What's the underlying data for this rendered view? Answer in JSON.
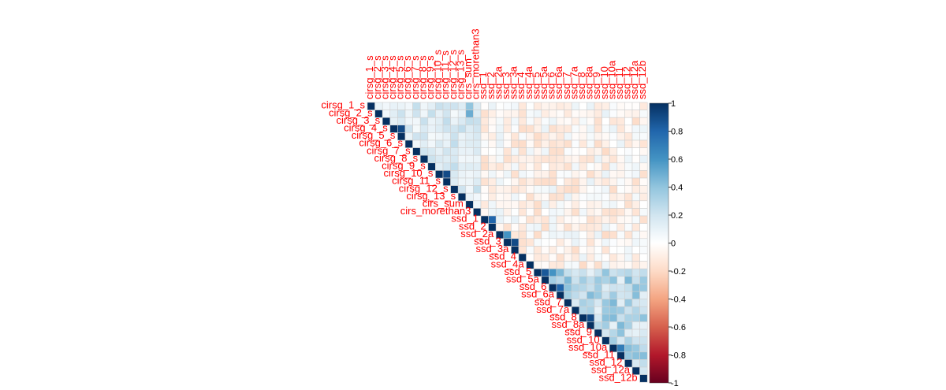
{
  "chart_data": {
    "type": "heatmap",
    "subtype": "correlation-matrix-upper",
    "variables": [
      "cirsg_1_s",
      "cirsg_2_s",
      "cirsg_3_s",
      "cirsg_4_s",
      "cirsg_5_s",
      "cirsg_6_s",
      "cirsg_7_s",
      "cirsg_8_s",
      "cirsg_9_s",
      "cirsg_10_s",
      "cirsg_11_s",
      "cirsg_12_s",
      "cirsg_13_s",
      "cirs_sum",
      "cirs_morethan3",
      "ssd_1",
      "ssd_2",
      "ssd_2a",
      "ssd_3",
      "ssd_3a",
      "ssd_4",
      "ssd_4a",
      "ssd_5",
      "ssd_5a",
      "ssd_6",
      "ssd_6a",
      "ssd_7",
      "ssd_7a",
      "ssd_8",
      "ssd_8a",
      "ssd_9",
      "ssd_10",
      "ssd_10a",
      "ssd_11",
      "ssd_12",
      "ssd_12a",
      "ssd_12b"
    ],
    "diagonal_value": 1,
    "notable_correlations": [
      {
        "row": "cirsg_1_s",
        "col": "cirs_sum",
        "value": 0.4
      },
      {
        "row": "cirsg_2_s",
        "col": "cirs_sum",
        "value": 0.5
      },
      {
        "row": "cirsg_4_s",
        "col": "cirsg_5_s",
        "value": 0.9
      },
      {
        "row": "cirsg_10_s",
        "col": "cirsg_11_s",
        "value": 0.9
      },
      {
        "row": "ssd_1",
        "col": "ssd_2",
        "value": 0.8
      },
      {
        "row": "ssd_2a",
        "col": "ssd_3",
        "value": 0.6
      },
      {
        "row": "ssd_3",
        "col": "ssd_3a",
        "value": 0.9
      },
      {
        "row": "ssd_5",
        "col": "ssd_5a",
        "value": 0.85
      },
      {
        "row": "ssd_5",
        "col": "ssd_6",
        "value": 0.6
      },
      {
        "row": "ssd_6",
        "col": "ssd_6a",
        "value": 0.8
      },
      {
        "row": "ssd_8",
        "col": "ssd_8a",
        "value": 0.9
      },
      {
        "row": "ssd_10a",
        "col": "ssd_11",
        "value": 0.7
      },
      {
        "row": "ssd_12b",
        "col": "ssd_12b",
        "value": 1
      }
    ],
    "colorbar": {
      "range": [
        -1,
        1
      ],
      "ticks": [
        "1",
        "0.8",
        "0.6",
        "0.4",
        "0.2",
        "0",
        "-0.2",
        "-0.4",
        "-0.6",
        "-0.8",
        "-1"
      ],
      "stops": [
        "#67001F",
        "#B2182B",
        "#D6604D",
        "#F4A582",
        "#FDDBC7",
        "#FFFFFF",
        "#D1E5F0",
        "#92C5DE",
        "#4393C3",
        "#2166AC",
        "#053061"
      ]
    },
    "label_color": "#FF0000",
    "grid": true,
    "legend_placement": "right"
  }
}
